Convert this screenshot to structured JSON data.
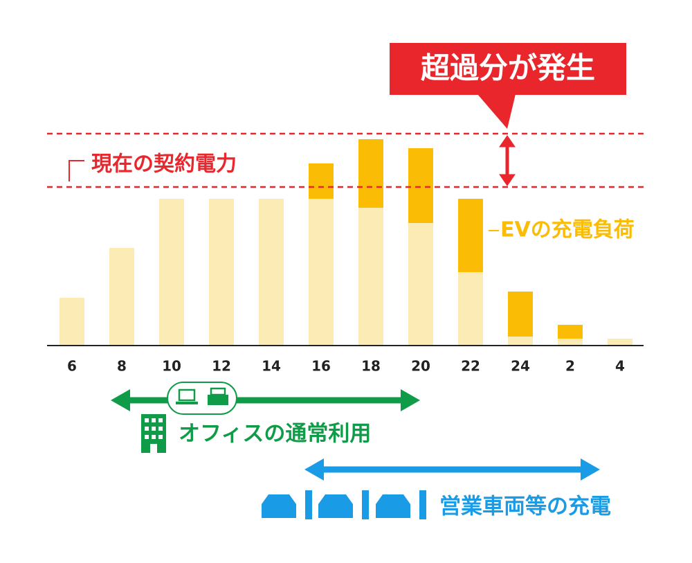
{
  "chart_data": {
    "type": "bar",
    "stacked": true,
    "categories": [
      "6",
      "8",
      "10",
      "12",
      "14",
      "16",
      "18",
      "20",
      "22",
      "24",
      "2",
      "4"
    ],
    "series": [
      {
        "color": "#fdebb5",
        "values": [
          69,
          141,
          212,
          212,
          212,
          212,
          199,
          177,
          106,
          13,
          10,
          10
        ]
      },
      {
        "name": "EVの充電負荷",
        "color": "#fbbc05",
        "values": [
          null,
          null,
          null,
          null,
          null,
          51,
          99,
          108,
          106,
          65,
          20,
          null
        ]
      }
    ],
    "ylim": [
      0,
      499
    ],
    "reference_lines": [
      {
        "value": 306,
        "color": "#e8262c"
      },
      {
        "value": 229,
        "label": "現在の契約電力",
        "color": "#e8262c"
      }
    ],
    "callout": "超過分が発生",
    "ranges": [
      {
        "label": "オフィスの通常利用",
        "color": "#109b48"
      },
      {
        "label": "営業車両等の充電",
        "color": "#1a9be6"
      }
    ]
  }
}
